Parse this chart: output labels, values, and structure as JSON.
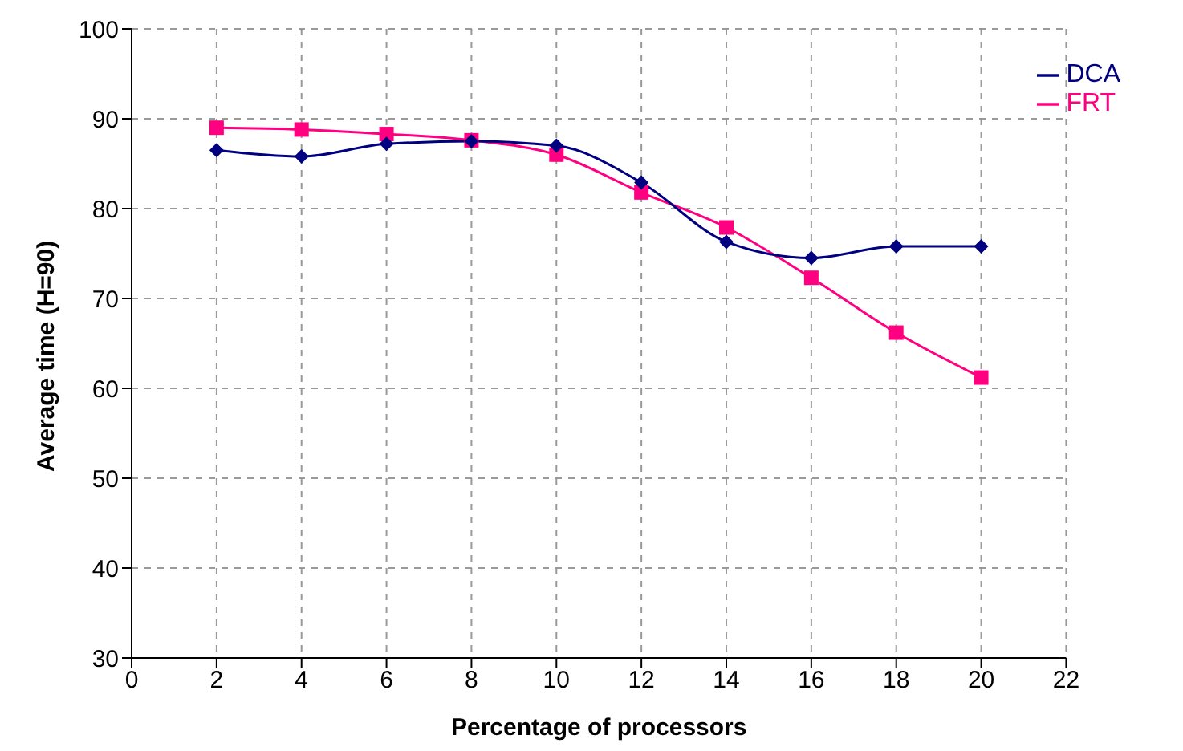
{
  "chart_data": {
    "type": "line",
    "xlabel": "Percentage of processors",
    "ylabel": "Average time (H=90)",
    "x": [
      2,
      4,
      6,
      8,
      10,
      12,
      14,
      16,
      18,
      20
    ],
    "series": [
      {
        "name": "DCA",
        "color": "#000080",
        "marker": "diamond",
        "values": [
          86.5,
          85.8,
          87.2,
          87.5,
          87,
          82.9,
          76.3,
          74.5,
          75.8,
          75.8
        ]
      },
      {
        "name": "FRT",
        "color": "#ff0080",
        "marker": "square",
        "values": [
          89,
          88.8,
          88.3,
          87.6,
          86,
          81.8,
          77.9,
          72.3,
          66.2,
          61.2
        ]
      }
    ],
    "xlim": [
      0,
      22
    ],
    "xticks": [
      0,
      2,
      4,
      6,
      8,
      10,
      12,
      14,
      16,
      18,
      20,
      22
    ],
    "ylim": [
      30,
      100
    ],
    "yticks": [
      30,
      40,
      50,
      60,
      70,
      80,
      90,
      100
    ],
    "grid": true,
    "legend": "top right",
    "line_style": "solid"
  }
}
